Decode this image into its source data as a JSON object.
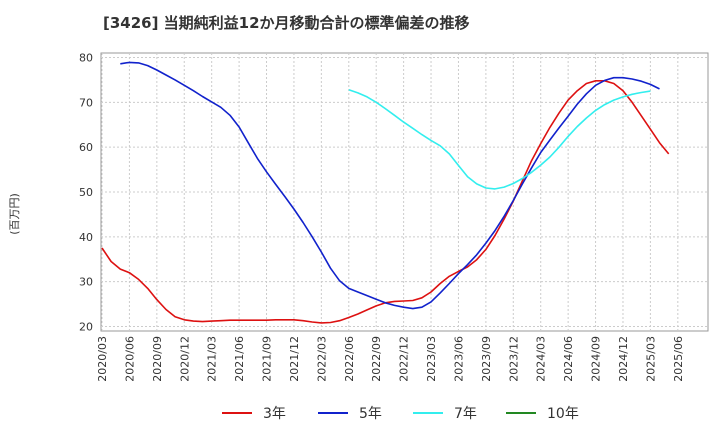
{
  "chart_data": {
    "type": "line",
    "title": "[3426]  当期純利益12か月移動合計の標準偏差の推移",
    "ylabel": "(百万円)",
    "xlabel": "",
    "ylim": [
      19,
      81
    ],
    "yticks": [
      20,
      30,
      40,
      50,
      60,
      70,
      80
    ],
    "xtick_labels": [
      "2020/03",
      "2020/06",
      "2020/09",
      "2020/12",
      "2021/03",
      "2021/06",
      "2021/09",
      "2021/12",
      "2022/03",
      "2022/06",
      "2022/09",
      "2022/12",
      "2023/03",
      "2023/06",
      "2023/09",
      "2023/12",
      "2024/03",
      "2024/06",
      "2024/09",
      "2024/12",
      "2025/03",
      "2025/06"
    ],
    "grid": true,
    "legend_position": "bottom",
    "series": [
      {
        "name": "3年",
        "color": "#dd1111",
        "start": "2020/03",
        "values": [
          37.5,
          34.5,
          32.8,
          32.0,
          30.5,
          28.5,
          26.0,
          23.8,
          22.2,
          21.5,
          21.2,
          21.1,
          21.2,
          21.3,
          21.4,
          21.4,
          21.4,
          21.4,
          21.4,
          21.5,
          21.5,
          21.5,
          21.3,
          21.0,
          20.8,
          20.9,
          21.3,
          22.0,
          22.8,
          23.7,
          24.6,
          25.3,
          25.6,
          25.7,
          25.8,
          26.4,
          27.7,
          29.6,
          31.2,
          32.3,
          33.3,
          34.9,
          37.2,
          40.3,
          44.0,
          48.0,
          52.5,
          57.0,
          60.8,
          64.4,
          67.6,
          70.5,
          72.6,
          74.2,
          74.8,
          74.8,
          74.2,
          72.6,
          70.0,
          67.0,
          64.0,
          61.0,
          58.5
        ]
      },
      {
        "name": "5年",
        "color": "#1122cc",
        "start": "2020/03",
        "values": [
          null,
          null,
          78.6,
          78.9,
          78.8,
          78.2,
          77.2,
          76.1,
          75.0,
          73.8,
          72.6,
          71.3,
          70.1,
          68.9,
          67.1,
          64.5,
          61.0,
          57.5,
          54.5,
          51.7,
          49.0,
          46.2,
          43.2,
          40.0,
          36.6,
          33.0,
          30.2,
          28.5,
          27.7,
          26.9,
          26.1,
          25.3,
          24.7,
          24.3,
          24.0,
          24.3,
          25.5,
          27.5,
          29.6,
          31.8,
          33.8,
          36.0,
          38.6,
          41.4,
          44.6,
          48.1,
          51.8,
          55.4,
          58.8,
          61.6,
          64.3,
          66.9,
          69.6,
          71.9,
          73.8,
          74.9,
          75.5,
          75.5,
          75.2,
          74.7,
          74.0,
          73.0
        ]
      },
      {
        "name": "7年",
        "color": "#33eeee",
        "start": "2020/03",
        "values": [
          null,
          null,
          null,
          null,
          null,
          null,
          null,
          null,
          null,
          null,
          null,
          null,
          null,
          null,
          null,
          null,
          null,
          null,
          null,
          null,
          null,
          null,
          null,
          null,
          null,
          null,
          null,
          72.8,
          72.1,
          71.2,
          70.0,
          68.6,
          67.1,
          65.6,
          64.2,
          62.8,
          61.5,
          60.3,
          58.5,
          55.9,
          53.4,
          51.8,
          50.9,
          50.7,
          51.1,
          51.9,
          53.0,
          54.4,
          56.0,
          57.8,
          60.0,
          62.4,
          64.6,
          66.5,
          68.2,
          69.5,
          70.5,
          71.2,
          71.8,
          72.2,
          72.5
        ]
      },
      {
        "name": "10年",
        "color": "#228822",
        "start": "2020/03",
        "values": []
      }
    ]
  }
}
